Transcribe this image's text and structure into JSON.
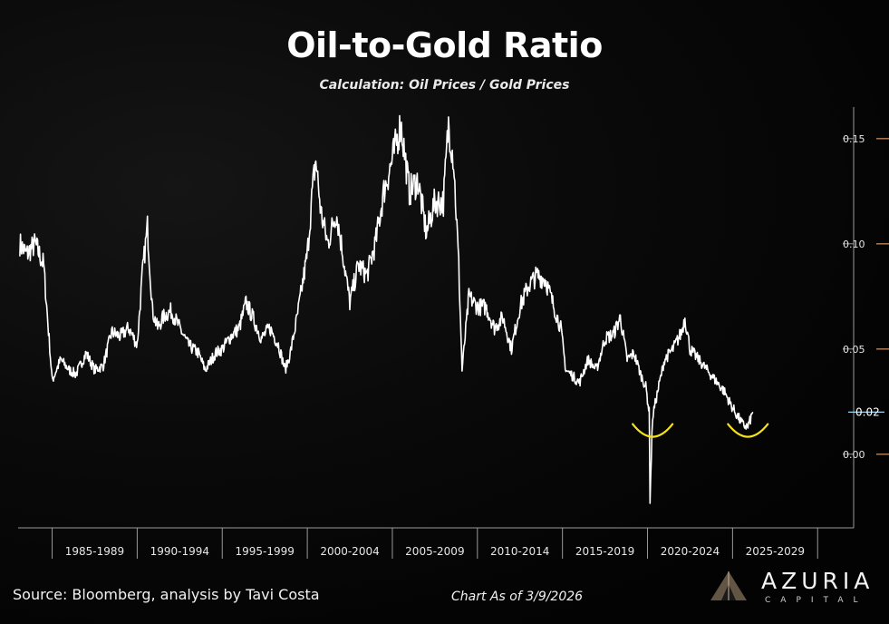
{
  "title": "Oil-to-Gold Ratio",
  "subtitle": "Calculation: Oil Prices / Gold Prices",
  "source": "Source: Bloomberg, analysis by Tavi Costa",
  "as_of": "Chart As of 3/9/2026",
  "brand": {
    "name": "AZURIA",
    "sub": "CAPITAL"
  },
  "colors": {
    "line": "#ffffff",
    "highlight": "#f4e21a",
    "axis": "#9a9a9a",
    "tick_accent": "#b07a55"
  },
  "chart_data": {
    "type": "line",
    "title": "Oil-to-Gold Ratio",
    "xlabel": "",
    "ylabel": "",
    "xlim": [
      1983,
      2031
    ],
    "ylim": [
      -0.035,
      0.165
    ],
    "y_ticks": [
      0.15,
      0.1,
      0.05,
      0.0
    ],
    "y_tick_labels": [
      "0.15",
      "0.10",
      "0.05",
      "0.00"
    ],
    "x_categories": [
      "1985-1989",
      "1990-1994",
      "1995-1999",
      "2000-2004",
      "2005-2009",
      "2010-2014",
      "2015-2019",
      "2020-2024",
      "2025-2029"
    ],
    "x_category_starts": [
      1985,
      1990,
      1995,
      2000,
      2005,
      2010,
      2015,
      2020,
      2025
    ],
    "last_value_label": "0.02",
    "grid": false,
    "series": [
      {
        "x": [
          1983.1,
          1983.5,
          1984.0,
          1984.5,
          1985.0,
          1985.5,
          1986.0,
          1986.4,
          1987.0,
          1987.5,
          1988.0,
          1988.5,
          1989.0,
          1989.5,
          1990.0,
          1990.3,
          1990.6,
          1990.9,
          1991.2,
          1991.6,
          1992.0,
          1992.5,
          1993.0,
          1993.6,
          1994.0,
          1994.6,
          1995.0,
          1995.5,
          1996.0,
          1996.4,
          1996.8,
          1997.3,
          1997.8,
          1998.3,
          1998.7,
          1999.0,
          1999.4,
          1999.8,
          2000.0,
          2000.3,
          2000.5,
          2000.8,
          2001.2,
          2001.7,
          2002.0,
          2002.5,
          2003.0,
          2003.5,
          2004.0,
          2004.5,
          2005.0,
          2005.5,
          2006.0,
          2006.5,
          2007.0,
          2007.5,
          2008.0,
          2008.3,
          2008.6,
          2008.9,
          2009.1,
          2009.5,
          2010.0,
          2010.5,
          2011.0,
          2011.5,
          2012.0,
          2012.5,
          2013.0,
          2013.5,
          2014.0,
          2014.5,
          2014.9,
          2015.2,
          2015.5,
          2016.0,
          2016.5,
          2017.0,
          2017.5,
          2018.0,
          2018.4,
          2018.8,
          2019.2,
          2019.6,
          2019.9,
          2020.1,
          2020.15,
          2020.3,
          2020.6,
          2021.0,
          2021.5,
          2022.0,
          2022.2,
          2022.5,
          2023.0,
          2023.5,
          2024.0,
          2024.5,
          2025.0,
          2025.3,
          2025.6,
          2025.9,
          2026.2
        ],
        "y": [
          0.1,
          0.095,
          0.1,
          0.09,
          0.035,
          0.045,
          0.04,
          0.038,
          0.048,
          0.04,
          0.042,
          0.058,
          0.056,
          0.06,
          0.052,
          0.085,
          0.108,
          0.068,
          0.06,
          0.066,
          0.068,
          0.06,
          0.052,
          0.048,
          0.04,
          0.048,
          0.05,
          0.056,
          0.06,
          0.072,
          0.065,
          0.055,
          0.06,
          0.052,
          0.04,
          0.048,
          0.065,
          0.085,
          0.095,
          0.125,
          0.14,
          0.115,
          0.1,
          0.115,
          0.1,
          0.072,
          0.09,
          0.085,
          0.1,
          0.125,
          0.14,
          0.157,
          0.125,
          0.13,
          0.105,
          0.12,
          0.12,
          0.157,
          0.14,
          0.09,
          0.04,
          0.075,
          0.07,
          0.07,
          0.06,
          0.065,
          0.05,
          0.07,
          0.08,
          0.085,
          0.083,
          0.07,
          0.06,
          0.04,
          0.038,
          0.034,
          0.045,
          0.04,
          0.055,
          0.057,
          0.065,
          0.045,
          0.048,
          0.038,
          0.032,
          0.02,
          -0.022,
          0.018,
          0.03,
          0.045,
          0.05,
          0.058,
          0.065,
          0.05,
          0.045,
          0.04,
          0.035,
          0.03,
          0.022,
          0.018,
          0.014,
          0.013,
          0.02
        ]
      }
    ],
    "highlights": [
      {
        "shape": "smile",
        "x": 2020.3,
        "y": 0.01
      },
      {
        "shape": "smile",
        "x": 2025.9,
        "y": 0.01
      }
    ]
  }
}
